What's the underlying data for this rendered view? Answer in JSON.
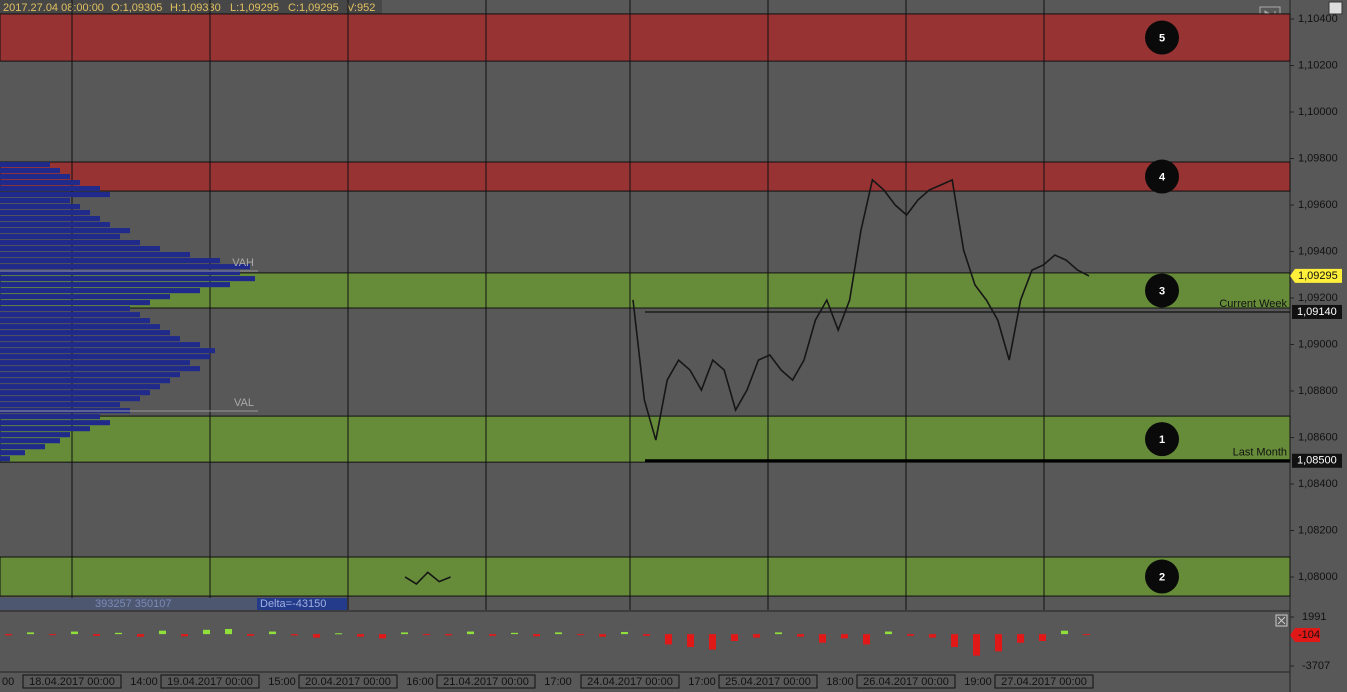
{
  "header": {
    "time": "2017.27.04 08:00:00",
    "open": "O:1,09305",
    "high": "H:1,09330",
    "low": "L:1,09295",
    "close": "C:1,09295",
    "volume": "V:952"
  },
  "chart_data": {
    "type": "line",
    "color": "#161616",
    "ylim": [
      1.07858,
      1.10469
    ],
    "yticks": [
      {
        "value": 1.08,
        "label": "1,08000"
      },
      {
        "value": 1.082,
        "label": "1,08200"
      },
      {
        "value": 1.084,
        "label": "1,08400"
      },
      {
        "value": 1.086,
        "label": "1,08600"
      },
      {
        "value": 1.088,
        "label": "1,08800"
      },
      {
        "value": 1.09,
        "label": "1,09000"
      },
      {
        "value": 1.092,
        "label": "1,09200"
      },
      {
        "value": 1.094,
        "label": "1,09400"
      },
      {
        "value": 1.096,
        "label": "1,09600"
      },
      {
        "value": 1.098,
        "label": "1,09800"
      },
      {
        "value": 1.1,
        "label": "1,10000"
      },
      {
        "value": 1.102,
        "label": "1,10200"
      },
      {
        "value": 1.104,
        "label": "1,10400"
      }
    ],
    "values": [
      1.08,
      1.0797,
      1.0802,
      1.0798,
      1.08,
      null,
      null,
      null,
      null,
      null,
      null,
      null,
      null,
      null,
      null,
      null,
      null,
      null,
      null,
      null,
      1.09192,
      1.08761,
      1.08589,
      1.08847,
      1.08933,
      1.0889,
      1.08804,
      1.08933,
      1.0889,
      1.08718,
      1.08804,
      1.08933,
      1.08955,
      1.0889,
      1.08847,
      1.08933,
      1.09105,
      1.09191,
      1.09062,
      1.09191,
      1.09492,
      1.09708,
      1.09665,
      1.096,
      1.09557,
      1.09622,
      1.09665,
      1.09686,
      1.09708,
      1.09406,
      1.09256,
      1.09191,
      1.09105,
      1.08933,
      1.09191,
      1.0932,
      1.09342,
      1.09385,
      1.09363,
      1.0932,
      1.09295
    ],
    "zones": [
      {
        "label": "5",
        "range": [
          1.10219,
          1.10422
        ],
        "color": "#983333"
      },
      {
        "label": "4",
        "range": [
          1.0966,
          1.09785
        ],
        "color": "#983333"
      },
      {
        "label": "3",
        "range": [
          1.09157,
          1.09308
        ],
        "color": "#668c3a"
      },
      {
        "label": "1",
        "range": [
          1.08494,
          1.08692
        ],
        "color": "#668c3a"
      },
      {
        "label": "2",
        "range": [
          1.07918,
          1.08086
        ],
        "color": "#668c3a"
      }
    ],
    "levels": [
      {
        "name": "Current Week",
        "value": 1.0914,
        "label": "1,09140"
      },
      {
        "name": "Last Month",
        "value": 1.085,
        "label": "1,08500"
      }
    ],
    "value_area": [
      {
        "name": "VAH",
        "value": 1.09316
      },
      {
        "name": "VAL",
        "value": 1.08714
      }
    ],
    "last_price": {
      "value": 1.09295,
      "label": "1,09295"
    },
    "profile": {
      "range": [
        1.08494,
        1.09785
      ],
      "color": "#1f2a8a",
      "values": [
        10,
        25,
        45,
        60,
        70,
        90,
        110,
        100,
        130,
        120,
        140,
        150,
        160,
        170,
        180,
        200,
        190,
        210,
        215,
        200,
        180,
        170,
        160,
        150,
        140,
        130,
        150,
        170,
        200,
        230,
        255,
        240,
        250,
        220,
        190,
        160,
        140,
        120,
        130,
        110,
        100,
        90,
        80,
        70,
        110,
        100,
        80,
        70,
        60,
        50
      ]
    },
    "x_labels": {
      "first": "00",
      "dates": [
        "18.04.2017 00:00",
        "19.04.2017 00:00",
        "20.04.2017 00:00",
        "21.04.2017 00:00",
        "24.04.2017 00:00",
        "25.04.2017 00:00",
        "26.04.2017 00:00",
        "27.04.2017 00:00"
      ],
      "hours": [
        "14:00",
        "15:00",
        "16:00",
        "17:00",
        "17:00",
        "18:00",
        "19:00"
      ]
    },
    "delta": {
      "ylim": [
        -3707,
        1991
      ],
      "yticks": [
        -3707,
        1991
      ],
      "last": -104,
      "totals": "393257 350107",
      "label": "Delta=-43150",
      "values": [
        -150,
        200,
        -100,
        300,
        -200,
        150,
        -300,
        400,
        -250,
        500,
        600,
        -200,
        300,
        -150,
        -400,
        100,
        -300,
        -500,
        200,
        -100,
        -150,
        300,
        -200,
        150,
        -250,
        200,
        -100,
        -300,
        250,
        -200,
        -1200,
        -1500,
        -1800,
        -800,
        -400,
        200,
        -300,
        -1000,
        -500,
        -1200,
        300,
        -200,
        -400,
        -1500,
        -2500,
        -2000,
        -1000,
        -800,
        400,
        -104
      ]
    }
  }
}
